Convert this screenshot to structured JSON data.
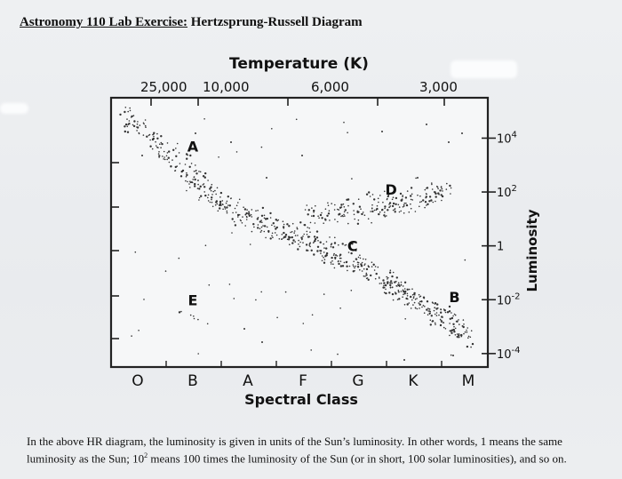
{
  "page_title": {
    "prefix": "Astronomy 110 Lab Exercise:",
    "suffix": " Hertzsprung-Russell Diagram"
  },
  "chart_data": {
    "type": "scatter",
    "title": "",
    "x_top_label": "Temperature (K)",
    "x_top_ticks": [
      "25,000",
      "10,000",
      "6,000",
      "3,000"
    ],
    "xlabel": "Spectral Class",
    "x_categories": [
      "O",
      "B",
      "A",
      "F",
      "G",
      "K",
      "M"
    ],
    "ylabel": "Luminosity",
    "y_ticks": [
      {
        "base": "10",
        "exp": "4",
        "log": 4
      },
      {
        "base": "10",
        "exp": "2",
        "log": 2
      },
      {
        "base": "1",
        "exp": "",
        "log": 0
      },
      {
        "base": "10",
        "exp": "-2",
        "log": -2
      },
      {
        "base": "10",
        "exp": "-4",
        "log": -4
      }
    ],
    "ylim_log10": [
      -4.5,
      5.5
    ],
    "grid": false,
    "point_labels": [
      {
        "label": "A",
        "spectral": 1.0,
        "log_lum": 3.7
      },
      {
        "label": "D",
        "spectral": 4.6,
        "log_lum": 2.1
      },
      {
        "label": "C",
        "spectral": 3.9,
        "log_lum": 0.0
      },
      {
        "label": "E",
        "spectral": 1.0,
        "log_lum": -2.0
      },
      {
        "label": "B",
        "spectral": 5.75,
        "log_lum": -1.9
      }
    ]
  },
  "note": {
    "part1": "In the above HR diagram, the luminosity is given in units of the Sun’s luminosity. In other words, 1 means the same luminosity as the Sun; 10",
    "sup": "2",
    "part2": " means 100 times the luminosity of the Sun (or in short, 100 solar luminosities), and so on."
  }
}
